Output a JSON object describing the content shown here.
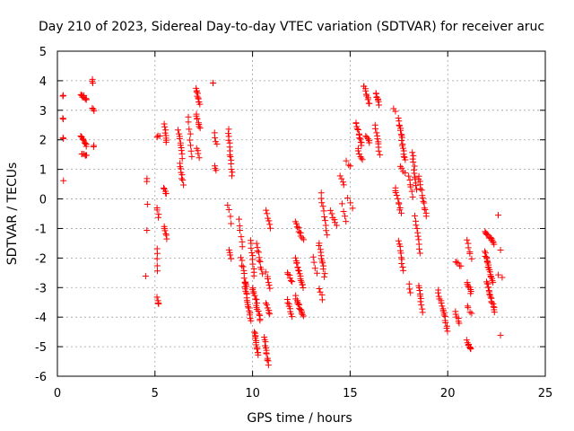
{
  "chart_data": {
    "type": "scatter",
    "title": "Day 210 of 2023, Sidereal Day-to-day VTEC variation (SDTVAR) for receiver aruc",
    "xlabel": "GPS time / hours",
    "ylabel": "SDTVAR / TECUs",
    "xlim": [
      0,
      25
    ],
    "ylim": [
      -6,
      5
    ],
    "xticks": [
      0,
      5,
      10,
      15,
      20,
      25
    ],
    "yticks": [
      -6,
      -5,
      -4,
      -3,
      -2,
      -1,
      0,
      1,
      2,
      3,
      4,
      5
    ],
    "xtick_labels": [
      "0",
      "5",
      "10",
      "15",
      "20",
      "25"
    ],
    "ytick_labels": [
      "-6",
      "-5",
      "-4",
      "-3",
      "-2",
      "-1",
      "0",
      "1",
      "2",
      "3",
      "4",
      "5"
    ],
    "grid": true,
    "marker": "+",
    "color": "#ff0000",
    "segments": [
      {
        "x": [
          0.3,
          0.3
        ],
        "y": [
          3.5,
          3.5
        ],
        "n": 2
      },
      {
        "x": [
          0.3,
          0.3
        ],
        "y": [
          2.7,
          2.7
        ],
        "n": 2
      },
      {
        "x": [
          0.3,
          0.3
        ],
        "y": [
          2.05,
          2.05
        ],
        "n": 2
      },
      {
        "x": [
          0.3,
          0.3
        ],
        "y": [
          0.65,
          0.65
        ],
        "n": 1
      },
      {
        "x": [
          1.2,
          1.5
        ],
        "y": [
          3.55,
          3.35
        ],
        "n": 10
      },
      {
        "x": [
          1.2,
          1.5
        ],
        "y": [
          2.15,
          1.8
        ],
        "n": 10
      },
      {
        "x": [
          1.25,
          1.5
        ],
        "y": [
          1.55,
          1.45
        ],
        "n": 6
      },
      {
        "x": [
          1.8,
          1.8
        ],
        "y": [
          4.05,
          3.95
        ],
        "n": 3
      },
      {
        "x": [
          1.8,
          1.85
        ],
        "y": [
          3.05,
          2.95
        ],
        "n": 3
      },
      {
        "x": [
          1.85,
          1.85
        ],
        "y": [
          1.8,
          1.8
        ],
        "n": 2
      },
      {
        "x": [
          4.6,
          4.6
        ],
        "y": [
          0.7,
          0.6
        ],
        "n": 2
      },
      {
        "x": [
          4.6,
          4.6
        ],
        "y": [
          -0.2,
          -0.2
        ],
        "n": 1
      },
      {
        "x": [
          4.6,
          4.6
        ],
        "y": [
          -1.1,
          -1.1
        ],
        "n": 1
      },
      {
        "x": [
          4.55,
          4.55
        ],
        "y": [
          -2.6,
          -2.6
        ],
        "n": 1
      },
      {
        "x": [
          5.1,
          5.25
        ],
        "y": [
          2.1,
          2.1
        ],
        "n": 3
      },
      {
        "x": [
          5.1,
          5.2
        ],
        "y": [
          -0.3,
          -0.6
        ],
        "n": 4
      },
      {
        "x": [
          5.1,
          5.15
        ],
        "y": [
          -1.7,
          -2.4
        ],
        "n": 5
      },
      {
        "x": [
          5.1,
          5.2
        ],
        "y": [
          -3.35,
          -3.55
        ],
        "n": 4
      },
      {
        "x": [
          5.5,
          5.6
        ],
        "y": [
          2.55,
          1.9
        ],
        "n": 8
      },
      {
        "x": [
          5.45,
          5.6
        ],
        "y": [
          0.35,
          0.15
        ],
        "n": 5
      },
      {
        "x": [
          5.5,
          5.6
        ],
        "y": [
          -0.9,
          -1.35
        ],
        "n": 6
      },
      {
        "x": [
          6.2,
          6.4
        ],
        "y": [
          2.3,
          1.4
        ],
        "n": 10
      },
      {
        "x": [
          6.25,
          6.45
        ],
        "y": [
          1.2,
          0.5
        ],
        "n": 8
      },
      {
        "x": [
          6.7,
          6.9
        ],
        "y": [
          2.8,
          1.4
        ],
        "n": 8
      },
      {
        "x": [
          7.1,
          7.3
        ],
        "y": [
          3.75,
          3.2
        ],
        "n": 10
      },
      {
        "x": [
          7.1,
          7.3
        ],
        "y": [
          2.9,
          2.4
        ],
        "n": 8
      },
      {
        "x": [
          7.15,
          7.25
        ],
        "y": [
          1.7,
          1.4
        ],
        "n": 4
      },
      {
        "x": [
          8.0,
          8.0
        ],
        "y": [
          3.95,
          3.9
        ],
        "n": 2
      },
      {
        "x": [
          8.05,
          8.15
        ],
        "y": [
          2.2,
          1.85
        ],
        "n": 4
      },
      {
        "x": [
          8.05,
          8.15
        ],
        "y": [
          1.1,
          0.95
        ],
        "n": 3
      },
      {
        "x": [
          8.75,
          8.95
        ],
        "y": [
          2.35,
          0.8
        ],
        "n": 14
      },
      {
        "x": [
          8.75,
          8.9
        ],
        "y": [
          -0.2,
          -0.8
        ],
        "n": 4
      },
      {
        "x": [
          8.8,
          8.9
        ],
        "y": [
          -1.7,
          -2.0
        ],
        "n": 4
      },
      {
        "x": [
          9.3,
          9.5
        ],
        "y": [
          -0.7,
          -1.6
        ],
        "n": 6
      },
      {
        "x": [
          9.4,
          9.7
        ],
        "y": [
          -2.0,
          -3.0
        ],
        "n": 10
      },
      {
        "x": [
          9.6,
          9.9
        ],
        "y": [
          -2.8,
          -4.1
        ],
        "n": 18
      },
      {
        "x": [
          9.9,
          10.1
        ],
        "y": [
          -1.4,
          -2.6
        ],
        "n": 10
      },
      {
        "x": [
          10.0,
          10.2
        ],
        "y": [
          -3.0,
          -3.5
        ],
        "n": 8
      },
      {
        "x": [
          10.1,
          10.3
        ],
        "y": [
          -4.5,
          -5.3
        ],
        "n": 14
      },
      {
        "x": [
          10.2,
          10.5
        ],
        "y": [
          -1.5,
          -2.5
        ],
        "n": 10
      },
      {
        "x": [
          10.2,
          10.4
        ],
        "y": [
          -3.6,
          -4.1
        ],
        "n": 8
      },
      {
        "x": [
          10.6,
          10.8
        ],
        "y": [
          -4.7,
          -5.6
        ],
        "n": 12
      },
      {
        "x": [
          10.7,
          10.9
        ],
        "y": [
          -0.4,
          -1.0
        ],
        "n": 6
      },
      {
        "x": [
          10.7,
          10.9
        ],
        "y": [
          -2.5,
          -3.0
        ],
        "n": 6
      },
      {
        "x": [
          10.7,
          10.9
        ],
        "y": [
          -3.5,
          -3.9
        ],
        "n": 6
      },
      {
        "x": [
          11.8,
          12.0
        ],
        "y": [
          -2.5,
          -2.8
        ],
        "n": 6
      },
      {
        "x": [
          11.8,
          12.0
        ],
        "y": [
          -3.4,
          -4.0
        ],
        "n": 8
      },
      {
        "x": [
          12.2,
          12.6
        ],
        "y": [
          -0.8,
          -1.4
        ],
        "n": 12
      },
      {
        "x": [
          12.2,
          12.6
        ],
        "y": [
          -2.0,
          -3.0
        ],
        "n": 16
      },
      {
        "x": [
          12.2,
          12.6
        ],
        "y": [
          -3.3,
          -4.0
        ],
        "n": 14
      },
      {
        "x": [
          13.1,
          13.3
        ],
        "y": [
          -2.0,
          -2.5
        ],
        "n": 4
      },
      {
        "x": [
          13.5,
          13.8
        ],
        "y": [
          0.2,
          -1.2
        ],
        "n": 10
      },
      {
        "x": [
          13.4,
          13.7
        ],
        "y": [
          -1.5,
          -2.6
        ],
        "n": 12
      },
      {
        "x": [
          13.4,
          13.6
        ],
        "y": [
          -3.0,
          -3.4
        ],
        "n": 4
      },
      {
        "x": [
          14.0,
          14.3
        ],
        "y": [
          -0.4,
          -0.9
        ],
        "n": 6
      },
      {
        "x": [
          14.5,
          14.7
        ],
        "y": [
          0.8,
          0.5
        ],
        "n": 4
      },
      {
        "x": [
          14.6,
          14.8
        ],
        "y": [
          -0.2,
          -0.8
        ],
        "n": 4
      },
      {
        "x": [
          14.8,
          15.0
        ],
        "y": [
          1.25,
          1.1
        ],
        "n": 3
      },
      {
        "x": [
          14.9,
          15.1
        ],
        "y": [
          0.0,
          -0.3
        ],
        "n": 3
      },
      {
        "x": [
          15.3,
          15.6
        ],
        "y": [
          2.6,
          1.8
        ],
        "n": 12
      },
      {
        "x": [
          15.4,
          15.6
        ],
        "y": [
          1.7,
          1.3
        ],
        "n": 6
      },
      {
        "x": [
          15.7,
          16.0
        ],
        "y": [
          3.85,
          3.2
        ],
        "n": 10
      },
      {
        "x": [
          15.8,
          16.0
        ],
        "y": [
          2.1,
          1.9
        ],
        "n": 5
      },
      {
        "x": [
          16.3,
          16.5
        ],
        "y": [
          3.6,
          3.2
        ],
        "n": 8
      },
      {
        "x": [
          16.3,
          16.5
        ],
        "y": [
          2.5,
          1.5
        ],
        "n": 10
      },
      {
        "x": [
          17.2,
          17.3
        ],
        "y": [
          3.05,
          3.0
        ],
        "n": 2
      },
      {
        "x": [
          17.5,
          17.8
        ],
        "y": [
          2.7,
          1.3
        ],
        "n": 18
      },
      {
        "x": [
          17.6,
          17.8
        ],
        "y": [
          1.1,
          0.9
        ],
        "n": 4
      },
      {
        "x": [
          17.3,
          17.6
        ],
        "y": [
          0.4,
          -0.5
        ],
        "n": 10
      },
      {
        "x": [
          17.5,
          17.7
        ],
        "y": [
          -1.4,
          -2.4
        ],
        "n": 10
      },
      {
        "x": [
          18.0,
          18.1
        ],
        "y": [
          -2.9,
          -3.2
        ],
        "n": 3
      },
      {
        "x": [
          18.0,
          18.2
        ],
        "y": [
          0.8,
          0.1
        ],
        "n": 6
      },
      {
        "x": [
          18.2,
          18.4
        ],
        "y": [
          1.6,
          0.3
        ],
        "n": 12
      },
      {
        "x": [
          18.3,
          18.6
        ],
        "y": [
          -0.6,
          -1.8
        ],
        "n": 10
      },
      {
        "x": [
          18.5,
          18.9
        ],
        "y": [
          0.8,
          -0.6
        ],
        "n": 14
      },
      {
        "x": [
          18.5,
          18.7
        ],
        "y": [
          -2.9,
          -3.8
        ],
        "n": 10
      },
      {
        "x": [
          19.5,
          19.8
        ],
        "y": [
          -3.1,
          -3.9
        ],
        "n": 10
      },
      {
        "x": [
          19.8,
          20.0
        ],
        "y": [
          -3.8,
          -4.5
        ],
        "n": 8
      },
      {
        "x": [
          20.4,
          20.7
        ],
        "y": [
          -2.1,
          -2.3
        ],
        "n": 5
      },
      {
        "x": [
          20.4,
          20.6
        ],
        "y": [
          -3.8,
          -4.2
        ],
        "n": 6
      },
      {
        "x": [
          21.0,
          21.2
        ],
        "y": [
          -1.4,
          -2.0
        ],
        "n": 6
      },
      {
        "x": [
          21.0,
          21.2
        ],
        "y": [
          -2.8,
          -3.2
        ],
        "n": 8
      },
      {
        "x": [
          21.0,
          21.2
        ],
        "y": [
          -3.6,
          -3.9
        ],
        "n": 4
      },
      {
        "x": [
          21.0,
          21.2
        ],
        "y": [
          -4.8,
          -5.1
        ],
        "n": 8
      },
      {
        "x": [
          21.9,
          22.4
        ],
        "y": [
          -1.1,
          -1.5
        ],
        "n": 14
      },
      {
        "x": [
          21.9,
          22.3
        ],
        "y": [
          -1.8,
          -2.8
        ],
        "n": 20
      },
      {
        "x": [
          22.0,
          22.4
        ],
        "y": [
          -2.8,
          -3.8
        ],
        "n": 18
      },
      {
        "x": [
          22.6,
          22.8
        ],
        "y": [
          -0.55,
          -0.55
        ],
        "n": 1
      },
      {
        "x": [
          22.7,
          22.8
        ],
        "y": [
          -1.7,
          -1.7
        ],
        "n": 1
      },
      {
        "x": [
          22.6,
          22.8
        ],
        "y": [
          -2.55,
          -2.65
        ],
        "n": 2
      },
      {
        "x": [
          22.7,
          22.8
        ],
        "y": [
          -4.6,
          -4.6
        ],
        "n": 1
      }
    ]
  }
}
